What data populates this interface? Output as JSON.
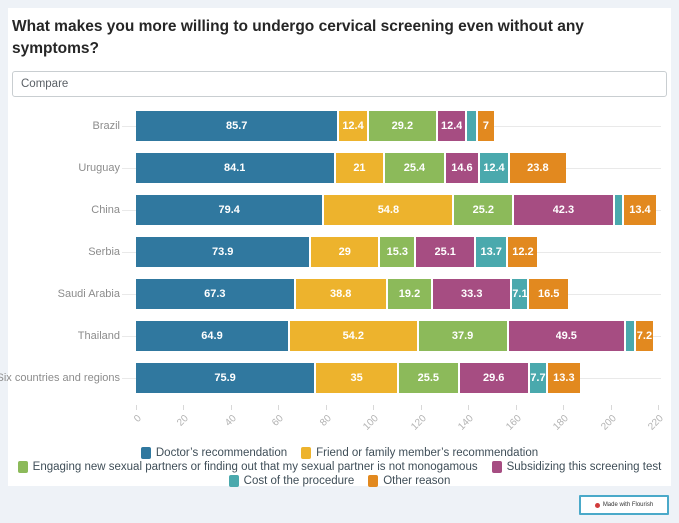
{
  "title": "What makes you more willing to undergo cervical screening even without any symptoms?",
  "controls": {
    "compare_placeholder": "Compare"
  },
  "footer": {
    "credit": "Made with Flourish"
  },
  "colors": {
    "doctor": "#30789f",
    "friend": "#edb32d",
    "partners": "#8cba5a",
    "subsidizing": "#a64d82",
    "cost": "#4aa9ad",
    "other": "#e2891f",
    "page_background": "#eef2f7",
    "card_background": "#ffffff",
    "gridline": "#e9e9e9",
    "category_label": "#8c8c8c",
    "axis_label": "#b3b3b3",
    "legend_text": "#3f4e58",
    "badge_border": "#4aa9c9",
    "badge_dot": "#d13b3b"
  },
  "chart_data": {
    "type": "bar",
    "subtype": "horizontal-stacked",
    "title": "What makes you more willing to undergo cervical screening even without any symptoms?",
    "categories": [
      "Brazil",
      "Uruguay",
      "China",
      "Serbia",
      "Saudi Arabia",
      "Thailand",
      "Six countries and regions"
    ],
    "series": [
      {
        "name": "Doctor’s recommendation",
        "color": "#30789f",
        "values": [
          85.7,
          84.1,
          79.4,
          73.9,
          67.3,
          64.9,
          75.9
        ],
        "labels": [
          "85.7",
          "84.1",
          "79.4",
          "73.9",
          "67.3",
          "64.9",
          "75.9"
        ]
      },
      {
        "name": "Friend or family member’s recommendation",
        "color": "#edb32d",
        "values": [
          12.4,
          21,
          54.8,
          29,
          38.8,
          54.2,
          35
        ],
        "labels": [
          "12.4",
          "21",
          "54.8",
          "29",
          "38.8",
          "54.2",
          "35"
        ]
      },
      {
        "name": "Engaging new sexual partners or finding out that my sexual partner is not monogamous",
        "color": "#8cba5a",
        "values": [
          29.2,
          25.4,
          25.2,
          15.3,
          19.2,
          37.9,
          25.5
        ],
        "labels": [
          "29.2",
          "25.4",
          "25.2",
          "15.3",
          "19.2",
          "37.9",
          "25.5"
        ]
      },
      {
        "name": "Subsidizing this screening test",
        "color": "#a64d82",
        "values": [
          12.4,
          14.6,
          42.3,
          25.1,
          33.3,
          49.5,
          29.6
        ],
        "labels": [
          "12.4",
          "14.6",
          "42.3",
          "25.1",
          "33.3",
          "49.5",
          "29.6"
        ]
      },
      {
        "name": "Cost of the procedure",
        "color": "#4aa9ad",
        "values": [
          4.3,
          12.4,
          4.0,
          13.7,
          7.1,
          4.2,
          7.7
        ],
        "labels": [
          "",
          "12.4",
          "",
          "13.7",
          "7.1",
          "",
          "7.7"
        ]
      },
      {
        "name": "Other reason",
        "color": "#e2891f",
        "values": [
          7,
          23.8,
          13.4,
          12.2,
          16.5,
          7.2,
          13.3
        ],
        "labels": [
          "7",
          "23.8",
          "13.4",
          "12.2",
          "16.5",
          "7.2",
          "13.3"
        ]
      }
    ],
    "xlim": [
      0,
      220
    ],
    "x_ticks": [
      0,
      20,
      40,
      60,
      80,
      100,
      120,
      140,
      160,
      180,
      200,
      220
    ],
    "x_tick_labels": [
      "0",
      "20",
      "40",
      "60",
      "80",
      "100",
      "120",
      "140",
      "160",
      "180",
      "200",
      "220"
    ],
    "grid": "row-lines and bottom tick marks",
    "legend_position": "bottom-center",
    "bar_label_color": "#ffffff"
  },
  "legend_layout_rows": [
    [
      0,
      1
    ],
    [
      2,
      3
    ],
    [
      4,
      5
    ]
  ]
}
